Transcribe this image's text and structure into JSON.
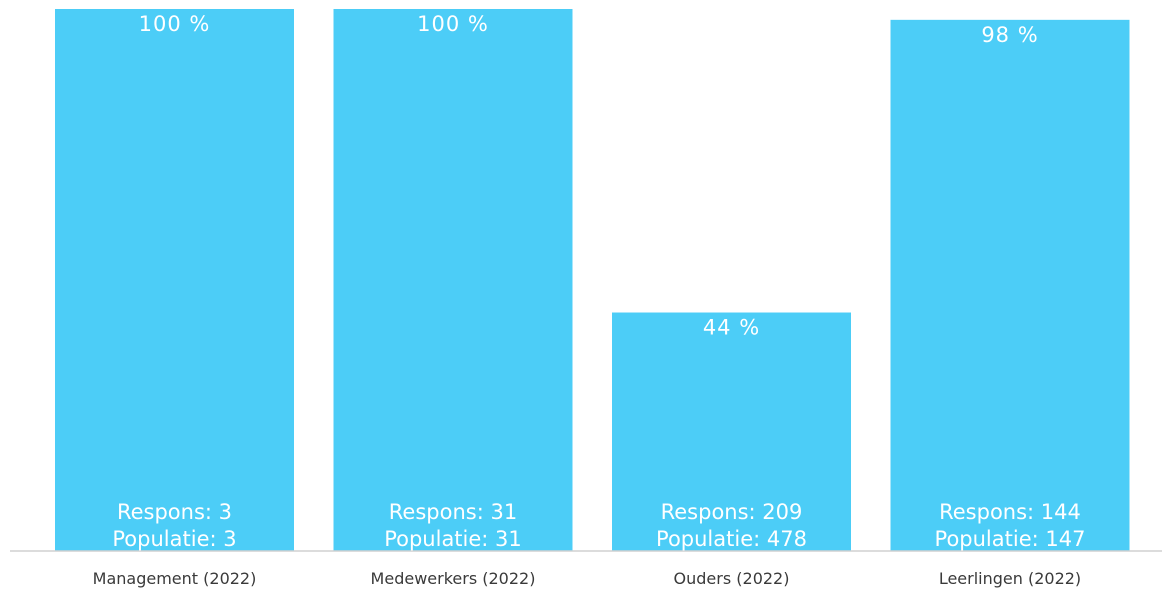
{
  "chart_data": {
    "type": "bar",
    "categories": [
      "Management (2022)",
      "Medewerkers (2022)",
      "Ouders (2022)",
      "Leerlingen (2022)"
    ],
    "values": [
      100,
      100,
      44,
      98
    ],
    "value_labels": [
      "100 %",
      "100 %",
      "44 %",
      "98 %"
    ],
    "respons_labels": [
      "Respons: 3",
      "Respons: 31",
      "Respons: 209",
      "Respons: 144"
    ],
    "populatie_labels": [
      "Populatie: 3",
      "Populatie: 31",
      "Populatie: 478",
      "Populatie: 147"
    ],
    "ylim": [
      0,
      100
    ],
    "grid": false,
    "bar_color": "#4ccdf7",
    "baseline_color": "#d0d0d0"
  }
}
